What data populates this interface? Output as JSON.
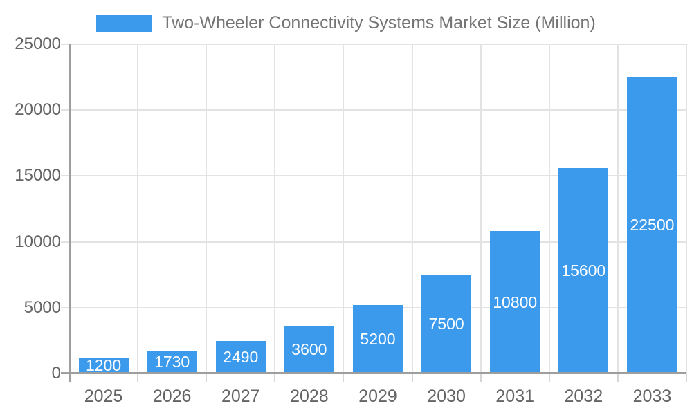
{
  "legend": {
    "label": "Two-Wheeler Connectivity Systems Market Size (Million)"
  },
  "colors": {
    "bar": "#3C9AEC",
    "grid": "#e3e3e3",
    "tick": "#d6d6d6",
    "axis": "#9e9e9e",
    "tick_label": "#646464",
    "legend_text": "#757575",
    "value_label": "#ffffff",
    "background": "#ffffff"
  },
  "chart_data": {
    "type": "bar",
    "title": "Two-Wheeler Connectivity Systems Market Size (Million)",
    "categories": [
      "2025",
      "2026",
      "2027",
      "2028",
      "2029",
      "2030",
      "2031",
      "2032",
      "2033"
    ],
    "values": [
      1200,
      1730,
      2490,
      3600,
      5200,
      7500,
      10800,
      15600,
      22500
    ],
    "value_labels": [
      "1200",
      "1730",
      "2490",
      "3600",
      "5200",
      "7500",
      "10800",
      "15600",
      "22500"
    ],
    "series": [
      {
        "name": "Two-Wheeler Connectivity Systems Market Size (Million)",
        "values": [
          1200,
          1730,
          2490,
          3600,
          5200,
          7500,
          10800,
          15600,
          22500
        ]
      }
    ],
    "xlabel": "",
    "ylabel": "",
    "ylim": [
      0,
      25000
    ],
    "yticks": [
      0,
      5000,
      10000,
      15000,
      20000,
      25000
    ],
    "ytick_labels": [
      "0",
      "5000",
      "10000",
      "15000",
      "20000",
      "25000"
    ],
    "grid": true,
    "legend_position": "top",
    "value_label_position": "inside-center"
  }
}
